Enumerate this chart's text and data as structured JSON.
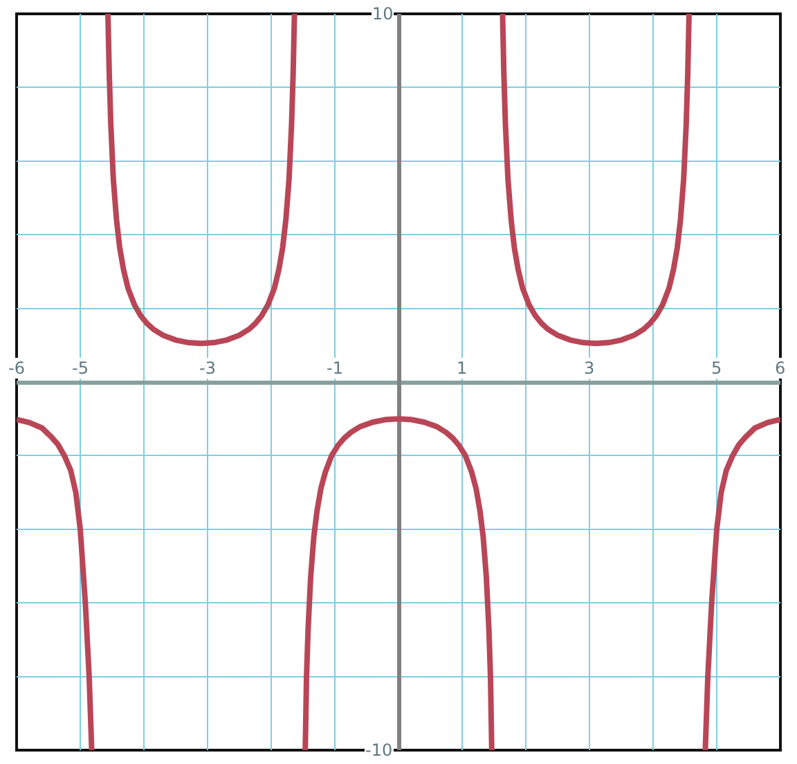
{
  "chart_data": {
    "type": "line",
    "x": [
      -6,
      -5.8,
      -5.6,
      -5.45,
      -5.35,
      -5.25,
      -5.15,
      -5.07,
      -5.0,
      -4.96,
      -4.92,
      -4.86,
      -4.82,
      -4.7,
      -4.565,
      -4.545,
      -4.52,
      -4.48,
      -4.43,
      -4.38,
      -4.32,
      -4.25,
      -4.15,
      -4.05,
      -3.95,
      -3.85,
      -3.7,
      -3.5,
      -3.3,
      -3.1,
      -2.9,
      -2.7,
      -2.5,
      -2.35,
      -2.25,
      -2.15,
      -2.05,
      -1.95,
      -1.88,
      -1.82,
      -1.77,
      -1.72,
      -1.68,
      -1.655,
      -1.635,
      -1.55,
      -1.465,
      -1.445,
      -1.42,
      -1.38,
      -1.33,
      -1.28,
      -1.22,
      -1.15,
      -1.05,
      -0.95,
      -0.85,
      -0.75,
      -0.6,
      -0.4,
      -0.2,
      0,
      0.2,
      0.4,
      0.6,
      0.75,
      0.85,
      0.95,
      1.05,
      1.15,
      1.22,
      1.28,
      1.33,
      1.38,
      1.42,
      1.445,
      1.465,
      1.55,
      1.635,
      1.655,
      1.68,
      1.72,
      1.77,
      1.82,
      1.88,
      1.95,
      2.05,
      2.15,
      2.25,
      2.35,
      2.5,
      2.7,
      2.9,
      3.1,
      3.3,
      3.5,
      3.7,
      3.85,
      3.95,
      4.05,
      4.15,
      4.25,
      4.32,
      4.38,
      4.43,
      4.48,
      4.52,
      4.545,
      4.565,
      4.7,
      4.82,
      4.86,
      4.92,
      4.96,
      5.0,
      5.07,
      5.15,
      5.25,
      5.35,
      5.45,
      5.6,
      5.8,
      6
    ],
    "series": [
      {
        "color": "#b84657",
        "values": [
          -1.02,
          -1.1,
          -1.25,
          -1.5,
          -1.7,
          -2.0,
          -2.4,
          -3.0,
          -4.0,
          -5.0,
          -6.0,
          -8.0,
          -10,
          null,
          10,
          8.4,
          7.0,
          5.5,
          4.4,
          3.65,
          3.05,
          2.55,
          2.1,
          1.8,
          1.59,
          1.43,
          1.27,
          1.14,
          1.07,
          1.05,
          1.07,
          1.14,
          1.27,
          1.43,
          1.59,
          1.8,
          2.1,
          2.55,
          3.05,
          3.65,
          4.4,
          5.5,
          7.0,
          8.4,
          10,
          null,
          -10,
          -8.0,
          -6.7,
          -5.3,
          -4.2,
          -3.5,
          -2.9,
          -2.45,
          -2.0,
          -1.72,
          -1.52,
          -1.37,
          -1.21,
          -1.09,
          -1.02,
          -1.0,
          -1.02,
          -1.09,
          -1.21,
          -1.37,
          -1.52,
          -1.72,
          -2.0,
          -2.45,
          -2.9,
          -3.5,
          -4.2,
          -5.3,
          -6.7,
          -8.0,
          -10,
          null,
          10,
          8.4,
          7.0,
          5.5,
          4.4,
          3.65,
          3.05,
          2.55,
          2.1,
          1.8,
          1.59,
          1.43,
          1.27,
          1.14,
          1.07,
          1.05,
          1.07,
          1.14,
          1.27,
          1.43,
          1.59,
          1.8,
          2.1,
          2.55,
          3.05,
          3.65,
          4.4,
          5.5,
          7.0,
          8.4,
          10,
          null,
          -10,
          -8.0,
          -6.0,
          -5.0,
          -4.0,
          -3.0,
          -2.4,
          -2.0,
          -1.7,
          -1.5,
          -1.25,
          -1.1,
          -1.02
        ]
      }
    ],
    "xlim": [
      -6,
      6
    ],
    "ylim": [
      -10,
      10
    ],
    "xticks": [
      -6,
      -5,
      {
        "value": -4,
        "label": null
      },
      -3,
      {
        "value": -2,
        "label": null
      },
      -1,
      {
        "value": 0,
        "label": null
      },
      1,
      {
        "value": 2,
        "label": null
      },
      3,
      {
        "value": 4,
        "label": null
      },
      5,
      6
    ],
    "yticks": [
      -10,
      {
        "value": -8,
        "label": null
      },
      {
        "value": -6,
        "label": null
      },
      {
        "value": -4,
        "label": null
      },
      {
        "value": -2,
        "label": null
      },
      {
        "value": 0,
        "label": null
      },
      {
        "value": 2,
        "label": null
      },
      {
        "value": 4,
        "label": null
      },
      {
        "value": 6,
        "label": null
      },
      {
        "value": 8,
        "label": null
      },
      10
    ],
    "grid": true
  }
}
